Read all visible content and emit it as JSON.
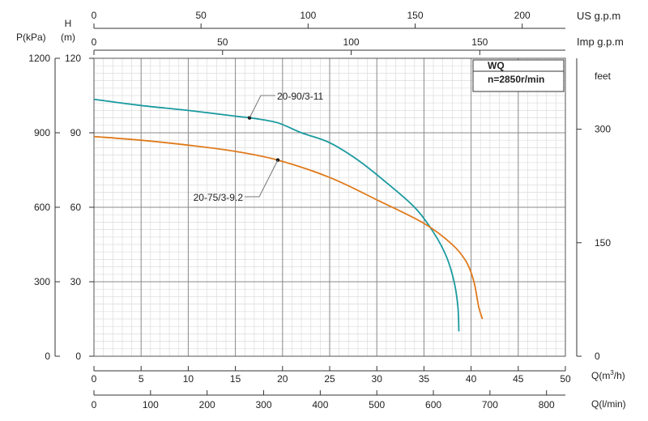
{
  "chart_data": {
    "type": "line",
    "legend_box": {
      "title": "WQ",
      "subtitle": "n=2850r/min"
    },
    "axes": {
      "q_m3h": {
        "label": "Q(m³/h)",
        "range": [
          0,
          50
        ],
        "ticks": [
          "0",
          "5",
          "10",
          "15",
          "20",
          "25",
          "30",
          "35",
          "40",
          "45",
          "50"
        ]
      },
      "q_lmin": {
        "label": "Q(l/min)",
        "ticks": [
          "0",
          "100",
          "200",
          "300",
          "400",
          "500",
          "600",
          "700",
          "800"
        ]
      },
      "us_gpm": {
        "label": "US g.p.m",
        "ticks": [
          "0",
          "50",
          "100",
          "150",
          "200"
        ]
      },
      "imp_gpm": {
        "label": "Imp g.p.m",
        "ticks": [
          "0",
          "50",
          "100",
          "150"
        ]
      },
      "head_m": {
        "label_line1": "H",
        "label_line2": "(m)",
        "range": [
          0,
          120
        ],
        "ticks": [
          "0",
          "30",
          "60",
          "90",
          "120"
        ]
      },
      "pressure_kpa": {
        "label": "P(kPa)",
        "ticks": [
          "0",
          "300",
          "600",
          "900",
          "1200"
        ]
      },
      "feet": {
        "label": "feet",
        "ticks": [
          "0",
          "150",
          "300"
        ]
      }
    },
    "grid": true,
    "series": [
      {
        "name": "20-90/3-11",
        "color": "#1a9aa0",
        "points": [
          [
            0,
            103.5
          ],
          [
            5,
            101
          ],
          [
            10,
            99
          ],
          [
            15,
            96.7
          ],
          [
            17,
            95.8
          ],
          [
            19.5,
            94
          ],
          [
            22,
            90
          ],
          [
            25,
            86
          ],
          [
            28,
            79
          ],
          [
            31,
            70
          ],
          [
            34,
            60
          ],
          [
            36,
            50
          ],
          [
            37.4,
            40
          ],
          [
            38.2,
            30
          ],
          [
            38.6,
            20
          ],
          [
            38.7,
            10
          ]
        ]
      },
      {
        "name": "20-75/3-9.2",
        "color": "#e07a1c",
        "points": [
          [
            0,
            88.5
          ],
          [
            5,
            87
          ],
          [
            10,
            85
          ],
          [
            15,
            82.5
          ],
          [
            19.5,
            79
          ],
          [
            25,
            72
          ],
          [
            30,
            63
          ],
          [
            35,
            53.5
          ],
          [
            38,
            45
          ],
          [
            39.5,
            38
          ],
          [
            40.3,
            30
          ],
          [
            40.8,
            20
          ],
          [
            41.2,
            15
          ]
        ]
      }
    ],
    "annotations": [
      {
        "text": "20-90/3-11",
        "series": "20-90/3-11",
        "at": [
          16.5,
          96
        ]
      },
      {
        "text": "20-75/3-9.2",
        "series": "20-75/3-9.2",
        "at": [
          19.5,
          79
        ]
      }
    ]
  }
}
